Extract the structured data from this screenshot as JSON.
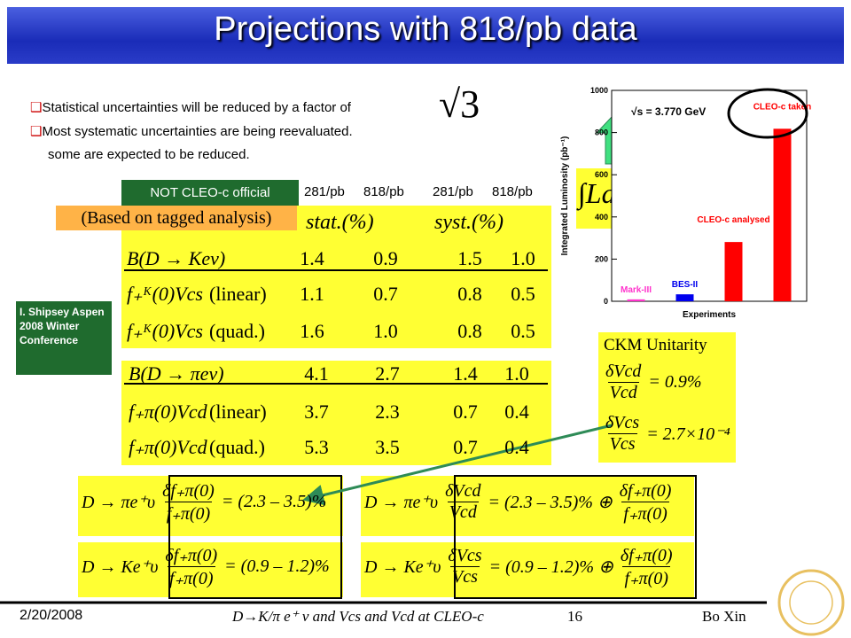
{
  "title": "Projections with 818/pb data",
  "bullets": [
    "Statistical uncertainties will be reduced by a factor of",
    "Most systematic uncertainties are being reevaluated.",
    "some are expected to be reduced."
  ],
  "sqrt_factor": "√3",
  "official_note": "NOT CLEO-c official",
  "column_headers": [
    "281/pb",
    "818/pb",
    "281/pb",
    "818/pb"
  ],
  "tagged_note": "(Based on tagged analysis)",
  "table_headers": [
    "stat.(%)",
    "syst.(%)"
  ],
  "table_k": [
    {
      "label": "B(D → Keν)",
      "qualifier": "",
      "cells": [
        "1.4",
        "0.9",
        "1.5",
        "1.0"
      ]
    },
    {
      "label": "f₊ᴷ(0)Vcs",
      "qualifier": "(linear)",
      "cells": [
        "1.1",
        "0.7",
        "0.8",
        "0.5"
      ]
    },
    {
      "label": "f₊ᴷ(0)Vcs",
      "qualifier": "(quad.)",
      "cells": [
        "1.6",
        "1.0",
        "0.8",
        "0.5"
      ]
    }
  ],
  "table_pi": [
    {
      "label": "B(D → πeν)",
      "qualifier": "",
      "cells": [
        "4.1",
        "2.7",
        "1.4",
        "1.0"
      ]
    },
    {
      "label": "f₊π(0)Vcd",
      "qualifier": "(linear)",
      "cells": [
        "3.7",
        "2.3",
        "0.7",
        "0.4"
      ]
    },
    {
      "label": "f₊π(0)Vcd",
      "qualifier": "(quad.)",
      "cells": [
        "5.3",
        "3.5",
        "0.7",
        "0.4"
      ]
    }
  ],
  "source_note": "I. Shipsey Aspen 2008 Winter Conference",
  "integral": "∫Ldt",
  "ckm": {
    "title": "CKM Unitarity",
    "formulas": [
      [
        {
          "num": "δVcd",
          "den": "Vcd"
        },
        {
          "text": "= 0.9%"
        }
      ],
      [
        {
          "num": "δVcs",
          "den": "Vcs"
        },
        {
          "text": "= 2.7×10⁻⁴"
        }
      ]
    ]
  },
  "formulas_left": [
    [
      {
        "text": "D → πe⁺υ"
      },
      {
        "num": "δf₊π(0)",
        "den": "f₊π(0)"
      },
      {
        "text": "= (2.3 – 3.5)%"
      }
    ],
    [
      {
        "text": "D → Ke⁺υ"
      },
      {
        "num": "δf₊π(0)",
        "den": "f₊π(0)"
      },
      {
        "text": "= (0.9 – 1.2)%"
      }
    ]
  ],
  "formulas_right": [
    [
      {
        "text": "D → πe⁺υ"
      },
      {
        "num": "δVcd",
        "den": "Vcd"
      },
      {
        "text": "= (2.3 – 3.5)% ⊕"
      },
      {
        "num": "δf₊π(0)",
        "den": "f₊π(0)"
      }
    ],
    [
      {
        "text": "D → Ke⁺υ"
      },
      {
        "num": "δVcs",
        "den": "Vcs"
      },
      {
        "text": "= (0.9 – 1.2)% ⊕"
      },
      {
        "num": "δf₊π(0)",
        "den": "f₊π(0)"
      }
    ]
  ],
  "footer": {
    "date": "2/20/2008",
    "topic": "D→K/π e⁺ ν and Vcs and Vcd at CLEO-c",
    "page": "16",
    "author": "Bo Xin"
  },
  "chart_data": {
    "type": "bar",
    "ylabel": "Integrated Luminosity (pb⁻¹)",
    "xlabel": "Experiments",
    "annotation": "√s = 3.770 GeV",
    "categories": [
      "Mark-III",
      "BES-II",
      "CLEO-c analysed",
      "CLEO-c taken"
    ],
    "values": [
      9,
      33,
      281,
      818
    ],
    "colors": [
      "#ff33cc",
      "#0000ee",
      "#ff0000",
      "#ff0000"
    ],
    "ylim": [
      0,
      1000
    ],
    "yticks": [
      0,
      200,
      400,
      600,
      800,
      1000
    ]
  }
}
